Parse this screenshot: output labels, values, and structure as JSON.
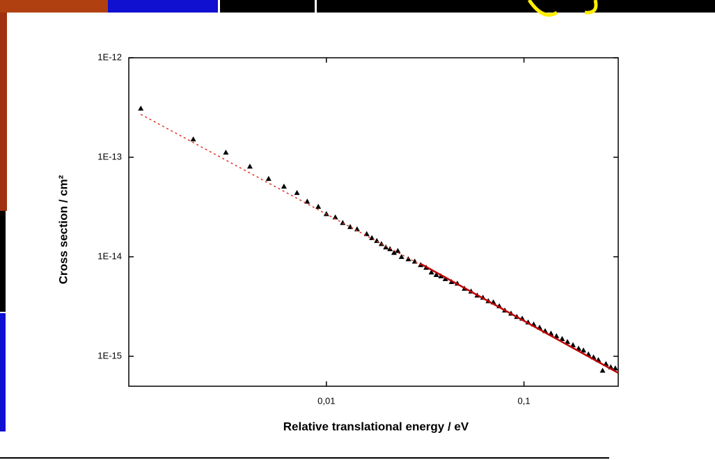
{
  "chart_data": {
    "type": "scatter",
    "xlabel": "Relative translational energy / eV",
    "ylabel": "Cross section / cm²",
    "xscale": "log",
    "yscale": "log",
    "xlim": [
      0.001,
      0.3
    ],
    "ylim": [
      5e-16,
      1e-12
    ],
    "xticks": [
      {
        "value": 0.01,
        "label": "0,01"
      },
      {
        "value": 0.1,
        "label": "0,1"
      }
    ],
    "yticks": [
      {
        "value": 1e-12,
        "label": "1E-12"
      },
      {
        "value": 1e-13,
        "label": "1E-13"
      },
      {
        "value": 1e-14,
        "label": "1E-14"
      },
      {
        "value": 1e-15,
        "label": "1E-15"
      }
    ],
    "series": [
      {
        "type": "scatter",
        "marker": "triangle",
        "color": "#000000",
        "x": [
          0.00115,
          0.00212,
          0.0031,
          0.0041,
          0.0051,
          0.0061,
          0.0071,
          0.008,
          0.0091,
          0.01,
          0.0111,
          0.0121,
          0.0132,
          0.0143,
          0.016,
          0.017,
          0.018,
          0.019,
          0.02,
          0.021,
          0.022,
          0.023,
          0.024,
          0.026,
          0.028,
          0.03,
          0.032,
          0.034,
          0.036,
          0.038,
          0.04,
          0.043,
          0.046,
          0.05,
          0.054,
          0.058,
          0.062,
          0.066,
          0.07,
          0.075,
          0.08,
          0.086,
          0.092,
          0.098,
          0.105,
          0.112,
          0.12,
          0.128,
          0.137,
          0.146,
          0.156,
          0.166,
          0.177,
          0.189,
          0.2,
          0.212,
          0.225,
          0.238,
          0.25,
          0.26,
          0.275,
          0.29
        ],
        "values": [
          3.1e-13,
          1.52e-13,
          1.12e-13,
          8.1e-14,
          6.1e-14,
          5.1e-14,
          4.4e-14,
          3.6e-14,
          3.2e-14,
          2.7e-14,
          2.5e-14,
          2.2e-14,
          2e-14,
          1.9e-14,
          1.7e-14,
          1.55e-14,
          1.45e-14,
          1.35e-14,
          1.25e-14,
          1.2e-14,
          1.1e-14,
          1.15e-14,
          1e-14,
          9.5e-15,
          9e-15,
          8.3e-15,
          7.8e-15,
          7e-15,
          6.6e-15,
          6.4e-15,
          6e-15,
          5.6e-15,
          5.4e-15,
          4.8e-15,
          4.5e-15,
          4.1e-15,
          3.9e-15,
          3.6e-15,
          3.5e-15,
          3.2e-15,
          2.9e-15,
          2.7e-15,
          2.5e-15,
          2.4e-15,
          2.2e-15,
          2.1e-15,
          1.95e-15,
          1.8e-15,
          1.7e-15,
          1.6e-15,
          1.5e-15,
          1.4e-15,
          1.3e-15,
          1.2e-15,
          1.15e-15,
          1.05e-15,
          9.8e-16,
          9.2e-16,
          7.2e-16,
          8.4e-16,
          7.8e-16,
          7.6e-16
        ]
      },
      {
        "type": "line",
        "style": "dotted",
        "color": "#e03020",
        "x": [
          0.00115,
          0.03
        ],
        "values": [
          2.7e-13,
          8.3e-15
        ]
      },
      {
        "type": "line",
        "style": "solid",
        "color": "#c00000",
        "x": [
          0.03,
          0.3
        ],
        "values": [
          8.5e-15,
          6.8e-16
        ]
      }
    ]
  }
}
